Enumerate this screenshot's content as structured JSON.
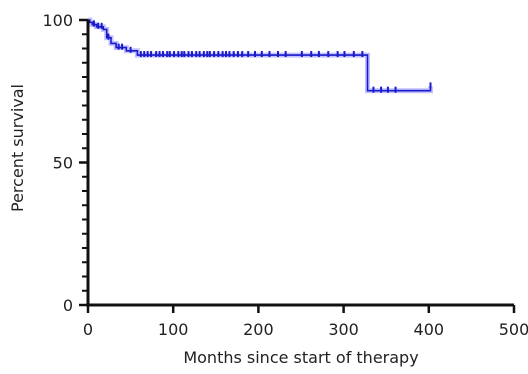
{
  "chart_data": {
    "type": "line",
    "title": "",
    "xlabel": "Months since start of therapy",
    "ylabel": "Percent survival",
    "xlim": [
      0,
      500
    ],
    "ylim": [
      0,
      100
    ],
    "x_ticks": [
      0,
      100,
      200,
      300,
      400,
      500
    ],
    "y_ticks": [
      0,
      50,
      100
    ],
    "x_tick_labels": [
      "0",
      "100",
      "200",
      "300",
      "400",
      "500"
    ],
    "y_tick_labels": [
      "0",
      "50",
      "100"
    ],
    "grid": false,
    "colors": {
      "line": "#1a1acc",
      "ci_band": "#8f8fff",
      "axis": "#111111"
    },
    "series": [
      {
        "step_points": [
          [
            0,
            100
          ],
          [
            2,
            100
          ],
          [
            2,
            99.2
          ],
          [
            5,
            99.2
          ],
          [
            5,
            98.4
          ],
          [
            10,
            98.4
          ],
          [
            10,
            97.6
          ],
          [
            18,
            97.6
          ],
          [
            18,
            96.7
          ],
          [
            22,
            96.7
          ],
          [
            22,
            93.8
          ],
          [
            27,
            93.8
          ],
          [
            27,
            91.8
          ],
          [
            33,
            91.8
          ],
          [
            33,
            90.3
          ],
          [
            45,
            90.3
          ],
          [
            45,
            89.2
          ],
          [
            58,
            89.2
          ],
          [
            58,
            87.7
          ],
          [
            328,
            87.7
          ],
          [
            328,
            75.2
          ],
          [
            402,
            75.2
          ],
          [
            402,
            76.7
          ]
        ],
        "censored_x": [
          7,
          12,
          16,
          24,
          36,
          40,
          50,
          62,
          66,
          70,
          74,
          80,
          84,
          88,
          93,
          96,
          101,
          106,
          110,
          113,
          118,
          122,
          127,
          131,
          136,
          140,
          143,
          148,
          153,
          158,
          162,
          166,
          171,
          176,
          181,
          188,
          196,
          204,
          213,
          223,
          232,
          251,
          262,
          271,
          282,
          293,
          301,
          312,
          322,
          335,
          344,
          352,
          361,
          402
        ]
      }
    ]
  }
}
